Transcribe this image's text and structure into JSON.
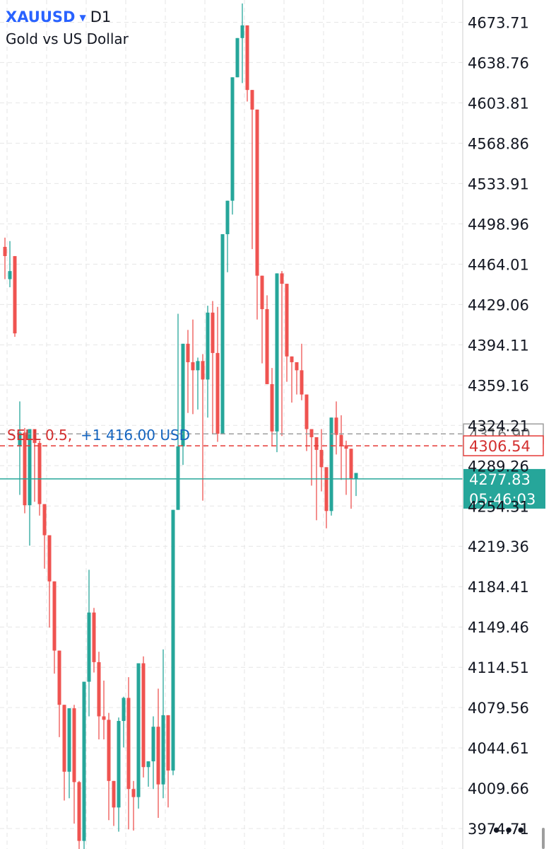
{
  "header": {
    "symbol": "XAUUSD",
    "timeframe": "D1",
    "subtitle": "Gold vs US Dollar"
  },
  "more_menu": "•••",
  "colors": {
    "bull": "#26a69a",
    "bear": "#ef5350",
    "grid": "#e6e6e6",
    "order_line": "#e53935",
    "bid_line": "#9e9e9e",
    "price_line": "#26a69a",
    "order_text": "#d32f2f",
    "profit_text": "#1565c0"
  },
  "chart_data": {
    "type": "candlestick",
    "ylim": [
      3957,
      4693
    ],
    "y_ticks": [
      "4673.71",
      "4638.76",
      "4603.81",
      "4568.86",
      "4533.91",
      "4498.96",
      "4464.01",
      "4429.06",
      "4394.11",
      "4359.16",
      "4324.21",
      "4289.26",
      "4254.31",
      "4219.36",
      "4184.41",
      "4149.46",
      "4114.51",
      "4079.56",
      "4044.61",
      "4009.66",
      "3974.71"
    ],
    "ohlc": [
      [
        4479,
        4487,
        4471,
        4451
      ],
      [
        4451,
        4484,
        4458,
        4444
      ],
      [
        4471,
        4471,
        4404,
        4401
      ],
      [
        4306,
        4345,
        4318,
        4264
      ],
      [
        4318,
        4322,
        4255,
        4248
      ],
      [
        4255,
        4315,
        4321,
        4220
      ],
      [
        4321,
        4321,
        4309,
        4258
      ],
      [
        4309,
        4311,
        4256,
        4246
      ],
      [
        4256,
        4256,
        4229,
        4200
      ],
      [
        4229,
        4229,
        4189,
        4149
      ],
      [
        4189,
        4189,
        4129,
        4109
      ],
      [
        4129,
        4129,
        4082,
        4054
      ],
      [
        4082,
        4082,
        4024,
        3999
      ],
      [
        4024,
        4051,
        4079,
        4001
      ],
      [
        4079,
        4082,
        4015,
        3979
      ],
      [
        4015,
        4016,
        3964,
        3944
      ],
      [
        3964,
        4069,
        4102,
        3950
      ],
      [
        4102,
        4199,
        4162,
        4072
      ],
      [
        4162,
        4166,
        4119,
        4110
      ],
      [
        4119,
        4128,
        4072,
        4052
      ],
      [
        4072,
        4103,
        4069,
        4052
      ],
      [
        4069,
        4075,
        4016,
        3982
      ],
      [
        4016,
        4015,
        3993,
        3977
      ],
      [
        3993,
        4071,
        4068,
        3972
      ],
      [
        4068,
        4089,
        4088,
        4045
      ],
      [
        4088,
        4106,
        4009,
        3974
      ],
      [
        4009,
        4016,
        4002,
        3973
      ],
      [
        4002,
        4072,
        4118,
        3992
      ],
      [
        4118,
        4124,
        4028,
        4019
      ],
      [
        4028,
        4023,
        4033,
        4011
      ],
      [
        4033,
        4072,
        4063,
        4009
      ],
      [
        4063,
        4096,
        4013,
        3984
      ],
      [
        4013,
        4130,
        4073,
        4001
      ],
      [
        4073,
        4073,
        4025,
        3993
      ],
      [
        4025,
        4219,
        4251,
        4021
      ],
      [
        4251,
        4421,
        4306,
        4290
      ],
      [
        4306,
        4395,
        4395,
        4290
      ],
      [
        4395,
        4407,
        4379,
        4335
      ],
      [
        4379,
        4416,
        4372,
        4334
      ],
      [
        4372,
        4383,
        4380,
        4338
      ],
      [
        4380,
        4386,
        4364,
        4259
      ],
      [
        4364,
        4428,
        4422,
        4331
      ],
      [
        4422,
        4432,
        4387,
        4317
      ],
      [
        4387,
        4427,
        4317,
        4310
      ],
      [
        4317,
        4412,
        4490,
        4317
      ],
      [
        4490,
        4511,
        4519,
        4457
      ],
      [
        4519,
        4580,
        4626,
        4507
      ],
      [
        4626,
        4645,
        4660,
        4640
      ],
      [
        4660,
        4690,
        4671,
        4621
      ],
      [
        4671,
        4671,
        4615,
        4605
      ],
      [
        4615,
        4610,
        4598,
        4477
      ],
      [
        4598,
        4509,
        4454,
        4416
      ],
      [
        4454,
        4454,
        4425,
        4378
      ],
      [
        4425,
        4437,
        4360,
        4369
      ],
      [
        4360,
        4374,
        4319,
        4307
      ],
      [
        4319,
        4430,
        4456,
        4301
      ],
      [
        4456,
        4458,
        4447,
        4315
      ],
      [
        4447,
        4436,
        4384,
        4362
      ],
      [
        4384,
        4376,
        4379,
        4344
      ],
      [
        4379,
        4367,
        4372,
        4351
      ],
      [
        4372,
        4395,
        4351,
        4346
      ],
      [
        4351,
        4340,
        4321,
        4302
      ],
      [
        4321,
        4314,
        4314,
        4272
      ],
      [
        4314,
        4314,
        4303,
        4242
      ],
      [
        4303,
        4321,
        4288,
        4267
      ],
      [
        4288,
        4288,
        4250,
        4235
      ],
      [
        4250,
        4258,
        4331,
        4246
      ],
      [
        4331,
        4345,
        4316,
        4299
      ],
      [
        4316,
        4333,
        4307,
        4277
      ],
      [
        4307,
        4311,
        4304,
        4264
      ],
      [
        4304,
        4282,
        4278,
        4252
      ],
      [
        4278,
        4272,
        4283,
        4263
      ]
    ],
    "order": {
      "label": "SELL  0.5,",
      "profit": "+1 416.00 USD",
      "price": "4306.54"
    },
    "bid": {
      "price": "4316.90"
    },
    "last": {
      "price": "4277.83",
      "countdown": "05:46:03"
    }
  }
}
